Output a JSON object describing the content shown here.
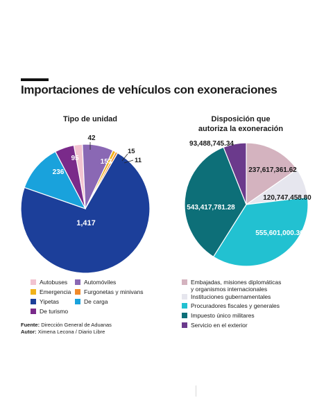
{
  "header": {
    "title": "Importaciones de vehículos con exoneraciones"
  },
  "chart_data": [
    {
      "type": "pie",
      "title": "Tipo de unidad",
      "slices": [
        {
          "name": "Autobuses",
          "value": 42,
          "label": "42",
          "color": "#f2c3d0"
        },
        {
          "name": "Automóviles",
          "value": 153,
          "label": "153",
          "color": "#8a68b4"
        },
        {
          "name": "Emergencia",
          "value": 15,
          "label": "15",
          "color": "#f0b21a"
        },
        {
          "name": "Furgonetas y minivans",
          "value": 11,
          "label": "11",
          "color": "#f08a2a"
        },
        {
          "name": "Yipetas",
          "value": 1417,
          "label": "1,417",
          "color": "#1c3f9a"
        },
        {
          "name": "De carga",
          "value": 236,
          "label": "236",
          "color": "#19a2dc"
        },
        {
          "name": "De turismo",
          "value": 95,
          "label": "95",
          "color": "#7a2a8a"
        }
      ]
    },
    {
      "type": "pie",
      "title": "Disposición que autoriza la exoneración",
      "slices": [
        {
          "name": "Embajadas, misiones diplomáticas y organismos internacionales",
          "value": 237617361.62,
          "label": "237,617,361.62",
          "color": "#d4b3bf"
        },
        {
          "name": "Instituciones gubernamentales",
          "value": 120747458.8,
          "label": "120,747,458.80",
          "color": "#e6e6ee"
        },
        {
          "name": "Procuradores fiscales y generales",
          "value": 555601000.36,
          "label": "555,601,000.36",
          "color": "#22c1d1"
        },
        {
          "name": "Impuesto único militares",
          "value": 543417781.28,
          "label": "543,417,781.28",
          "color": "#0d6f78"
        },
        {
          "name": "Servicio en el exterior",
          "value": 93488745.34,
          "label": "93,488,745.34",
          "color": "#6b3a8c"
        }
      ]
    }
  ],
  "legend_left": {
    "col1": [
      "Autobuses",
      "Emergencia",
      "Yipetas",
      "De turismo"
    ],
    "col2": [
      "Automóviles",
      "Furgonetas y minivans",
      "De carga"
    ]
  },
  "legend_right": [
    "Embajadas, misiones diplomáticas",
    "y organismos internacionales",
    "Instituciones gubernamentales",
    "Procuradores fiscales y generales",
    "Impuesto único militares",
    "Servicio en el exterior"
  ],
  "source": {
    "source_label": "Fuente:",
    "source_text": "Dirección General de Aduanas",
    "author_label": "Autor:",
    "author_text": "Ximena Lecona / Diario Libre"
  }
}
